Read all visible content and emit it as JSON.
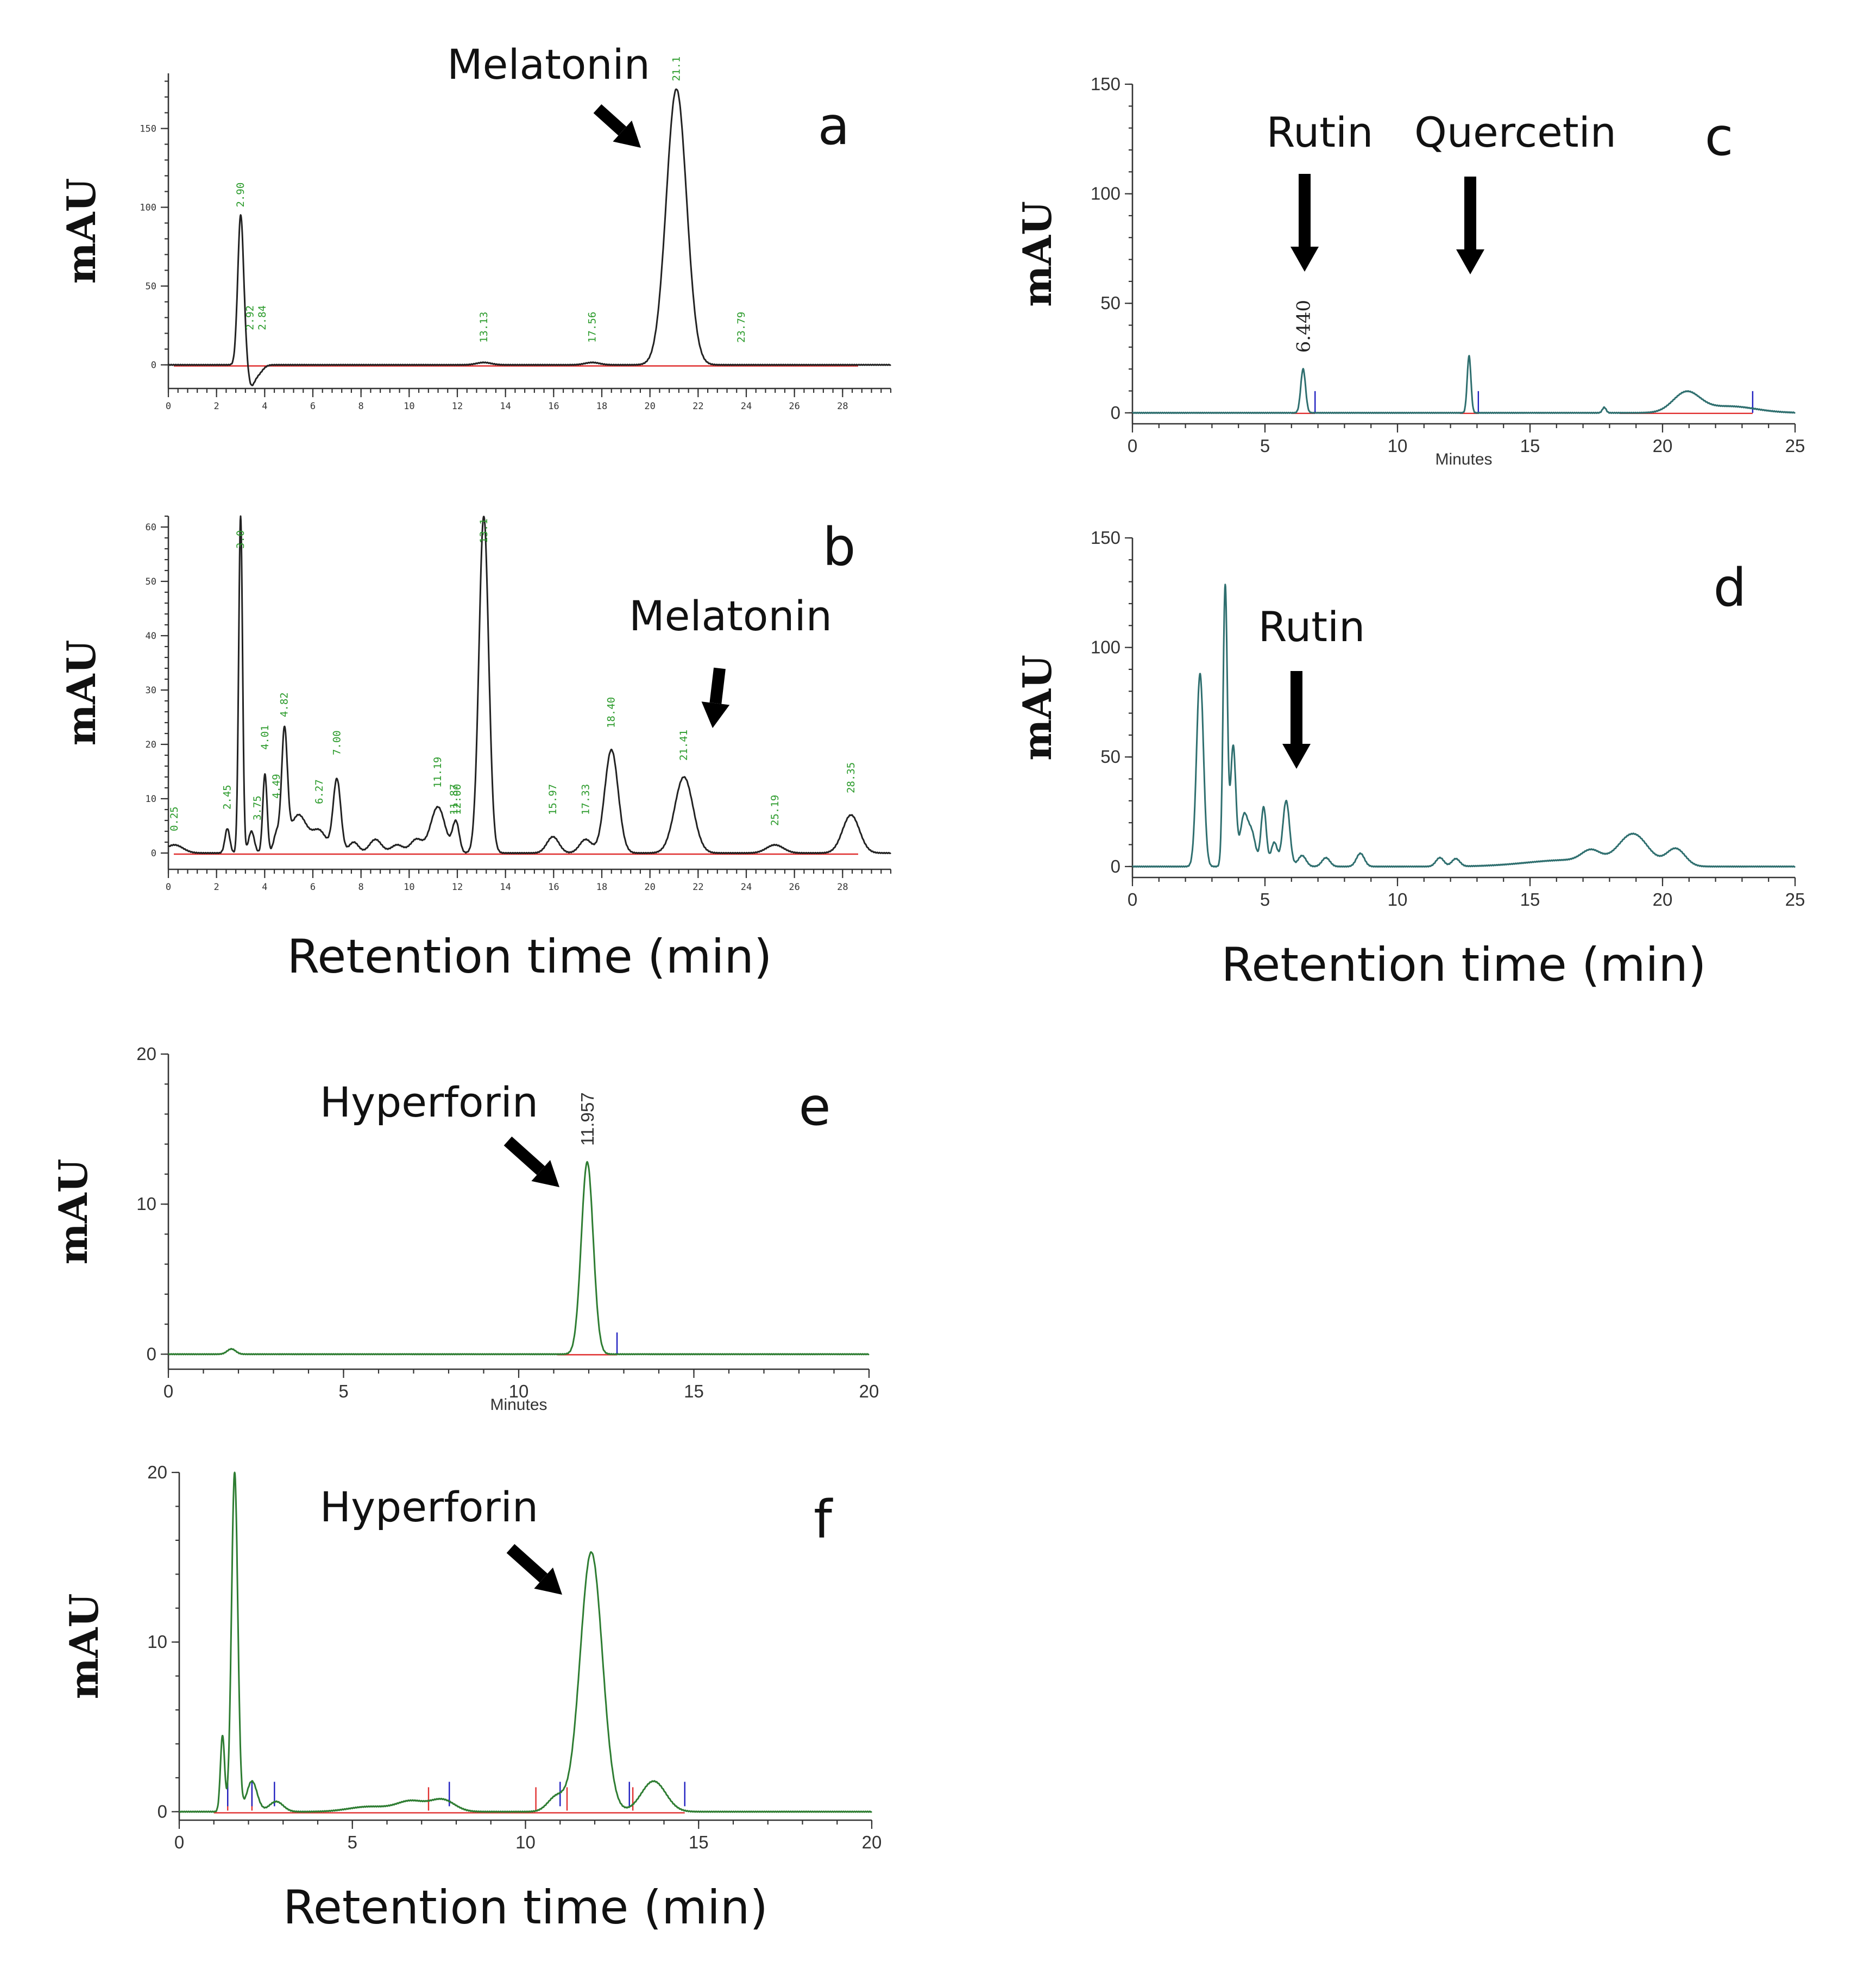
{
  "chart_data": [
    {
      "panel": "a",
      "type": "line",
      "ylabel": "mAU",
      "xlabel": "",
      "xlim": [
        0,
        30
      ],
      "ylim": [
        -15,
        185
      ],
      "xticks": [
        "0",
        "2",
        "4",
        "6",
        "8",
        "10",
        "12",
        "14",
        "16",
        "18",
        "20",
        "22",
        "24",
        "26",
        "28"
      ],
      "yticks": [
        "0",
        "50",
        "100",
        "150"
      ],
      "annotation": "Melatonin",
      "peak_labels": [
        "2.90",
        "2.92",
        "2.84",
        "13.13",
        "17.56",
        "21.1",
        "23.79"
      ],
      "peaks": [
        {
          "rt": 3.0,
          "height": 93,
          "width": 0.12
        },
        {
          "rt": 3.2,
          "height": 10,
          "width": 0.12
        },
        {
          "rt": 3.4,
          "height": -12,
          "width": 0.15
        },
        {
          "rt": 3.7,
          "height": -6,
          "width": 0.2
        },
        {
          "rt": 21.1,
          "height": 175,
          "width": 0.42
        },
        {
          "rt": 13.1,
          "height": 1.5,
          "width": 0.3
        },
        {
          "rt": 17.6,
          "height": 1.5,
          "width": 0.3
        }
      ]
    },
    {
      "panel": "b",
      "type": "line",
      "ylabel": "mAU",
      "xlabel": "Retention time (min)",
      "xlim": [
        0,
        30
      ],
      "ylim": [
        -3,
        62
      ],
      "xticks": [
        "0",
        "2",
        "4",
        "6",
        "8",
        "10",
        "12",
        "14",
        "16",
        "18",
        "20",
        "22",
        "24",
        "26",
        "28"
      ],
      "yticks": [
        "0",
        "10",
        "20",
        "30",
        "40",
        "50",
        "60"
      ],
      "annotation": "Melatonin",
      "peak_labels": [
        "0.25",
        "2.45",
        "3.0",
        "3.75",
        "4.01",
        "4.49",
        "4.82",
        "6.27",
        "7.00",
        "11.19",
        "11.87",
        "12.00",
        "13.1",
        "15.97",
        "17.33",
        "18.40",
        "21.41",
        "25.19",
        "28.35"
      ],
      "peaks": [
        {
          "rt": 0.25,
          "height": 1.5,
          "width": 0.35
        },
        {
          "rt": 2.45,
          "height": 4.5,
          "width": 0.1
        },
        {
          "rt": 3.0,
          "height": 62,
          "width": 0.08
        },
        {
          "rt": 3.45,
          "height": 4,
          "width": 0.12
        },
        {
          "rt": 4.01,
          "height": 14.5,
          "width": 0.09
        },
        {
          "rt": 4.49,
          "height": 3.5,
          "width": 0.12
        },
        {
          "rt": 4.82,
          "height": 21.5,
          "width": 0.12
        },
        {
          "rt": 5.4,
          "height": 7,
          "width": 0.35
        },
        {
          "rt": 6.27,
          "height": 4,
          "width": 0.3
        },
        {
          "rt": 7.0,
          "height": 13.5,
          "width": 0.16
        },
        {
          "rt": 7.7,
          "height": 2,
          "width": 0.2
        },
        {
          "rt": 8.6,
          "height": 2.5,
          "width": 0.25
        },
        {
          "rt": 9.5,
          "height": 1.5,
          "width": 0.25
        },
        {
          "rt": 10.3,
          "height": 2.5,
          "width": 0.25
        },
        {
          "rt": 11.19,
          "height": 8.5,
          "width": 0.3
        },
        {
          "rt": 11.87,
          "height": 3,
          "width": 0.12
        },
        {
          "rt": 12.0,
          "height": 3.5,
          "width": 0.12
        },
        {
          "rt": 13.1,
          "height": 62,
          "width": 0.2
        },
        {
          "rt": 15.97,
          "height": 3,
          "width": 0.25
        },
        {
          "rt": 17.33,
          "height": 2.5,
          "width": 0.25
        },
        {
          "rt": 18.4,
          "height": 19,
          "width": 0.28
        },
        {
          "rt": 21.41,
          "height": 14,
          "width": 0.38
        },
        {
          "rt": 25.19,
          "height": 1.5,
          "width": 0.35
        },
        {
          "rt": 28.35,
          "height": 7,
          "width": 0.35
        }
      ]
    },
    {
      "panel": "c",
      "type": "line",
      "ylabel": "mAU",
      "xlabel": "Minutes",
      "xlim": [
        0,
        25
      ],
      "ylim": [
        -5,
        150
      ],
      "xticks": [
        "0",
        "5",
        "10",
        "15",
        "20",
        "25"
      ],
      "yticks": [
        "0",
        "50",
        "100",
        "150"
      ],
      "annotations": [
        "Rutin",
        "Quercetin"
      ],
      "peak_labels": [
        "6.440"
      ],
      "peaks": [
        {
          "rt": 6.44,
          "height": 20,
          "width": 0.09
        },
        {
          "rt": 12.7,
          "height": 26,
          "width": 0.07
        },
        {
          "rt": 17.8,
          "height": 2.5,
          "width": 0.07
        },
        {
          "rt": 20.9,
          "height": 9,
          "width": 0.5
        },
        {
          "rt": 22.5,
          "height": 3,
          "width": 1.0
        }
      ]
    },
    {
      "panel": "d",
      "type": "line",
      "ylabel": "mAU",
      "xlabel": "Retention time (min)",
      "xlim": [
        0,
        25
      ],
      "ylim": [
        -5,
        150
      ],
      "xticks": [
        "0",
        "5",
        "10",
        "15",
        "20",
        "25"
      ],
      "yticks": [
        "0",
        "50",
        "100",
        "150"
      ],
      "annotation": "Rutin",
      "peaks": [
        {
          "rt": 2.55,
          "height": 88,
          "width": 0.13
        },
        {
          "rt": 3.5,
          "height": 128,
          "width": 0.08
        },
        {
          "rt": 3.8,
          "height": 55,
          "width": 0.1
        },
        {
          "rt": 4.2,
          "height": 22,
          "width": 0.14
        },
        {
          "rt": 4.5,
          "height": 15,
          "width": 0.15
        },
        {
          "rt": 4.95,
          "height": 27,
          "width": 0.1
        },
        {
          "rt": 5.35,
          "height": 11,
          "width": 0.12
        },
        {
          "rt": 5.8,
          "height": 30,
          "width": 0.13
        },
        {
          "rt": 6.4,
          "height": 5,
          "width": 0.15
        },
        {
          "rt": 7.3,
          "height": 4,
          "width": 0.15
        },
        {
          "rt": 8.6,
          "height": 6,
          "width": 0.15
        },
        {
          "rt": 11.6,
          "height": 4,
          "width": 0.15
        },
        {
          "rt": 12.2,
          "height": 3.5,
          "width": 0.15
        },
        {
          "rt": 17.3,
          "height": 5,
          "width": 0.35
        },
        {
          "rt": 18.9,
          "height": 14,
          "width": 0.55
        },
        {
          "rt": 20.5,
          "height": 8,
          "width": 0.35
        },
        {
          "rt": 16.5,
          "height": 3,
          "width": 1.6
        }
      ]
    },
    {
      "panel": "e",
      "type": "line",
      "ylabel": "mAU",
      "xlabel": "Minutes",
      "xlim": [
        0,
        20
      ],
      "ylim": [
        -1,
        20
      ],
      "xticks": [
        "0",
        "5",
        "10",
        "15",
        "20"
      ],
      "yticks": [
        "0",
        "10",
        "20"
      ],
      "annotation": "Hyperforin",
      "peak_labels": [
        "11.957"
      ],
      "peaks": [
        {
          "rt": 1.8,
          "height": 0.35,
          "width": 0.12
        },
        {
          "rt": 11.957,
          "height": 12.8,
          "width": 0.17
        }
      ]
    },
    {
      "panel": "f",
      "type": "line",
      "ylabel": "mAU",
      "xlabel": "Retention time (min)",
      "xlim": [
        0,
        20
      ],
      "ylim": [
        -0.5,
        20
      ],
      "xticks": [
        "0",
        "5",
        "10",
        "15",
        "20"
      ],
      "yticks": [
        "0",
        "10",
        "20"
      ],
      "annotation": "Hyperforin",
      "peaks": [
        {
          "rt": 1.25,
          "height": 4.5,
          "width": 0.06
        },
        {
          "rt": 1.6,
          "height": 20,
          "width": 0.09
        },
        {
          "rt": 2.1,
          "height": 1.8,
          "width": 0.15
        },
        {
          "rt": 2.8,
          "height": 0.6,
          "width": 0.2
        },
        {
          "rt": 5.5,
          "height": 0.3,
          "width": 0.6
        },
        {
          "rt": 6.7,
          "height": 0.6,
          "width": 0.4
        },
        {
          "rt": 7.6,
          "height": 0.7,
          "width": 0.35
        },
        {
          "rt": 10.9,
          "height": 0.9,
          "width": 0.25
        },
        {
          "rt": 11.9,
          "height": 15.3,
          "width": 0.32
        },
        {
          "rt": 13.7,
          "height": 1.8,
          "width": 0.35
        }
      ]
    }
  ]
}
